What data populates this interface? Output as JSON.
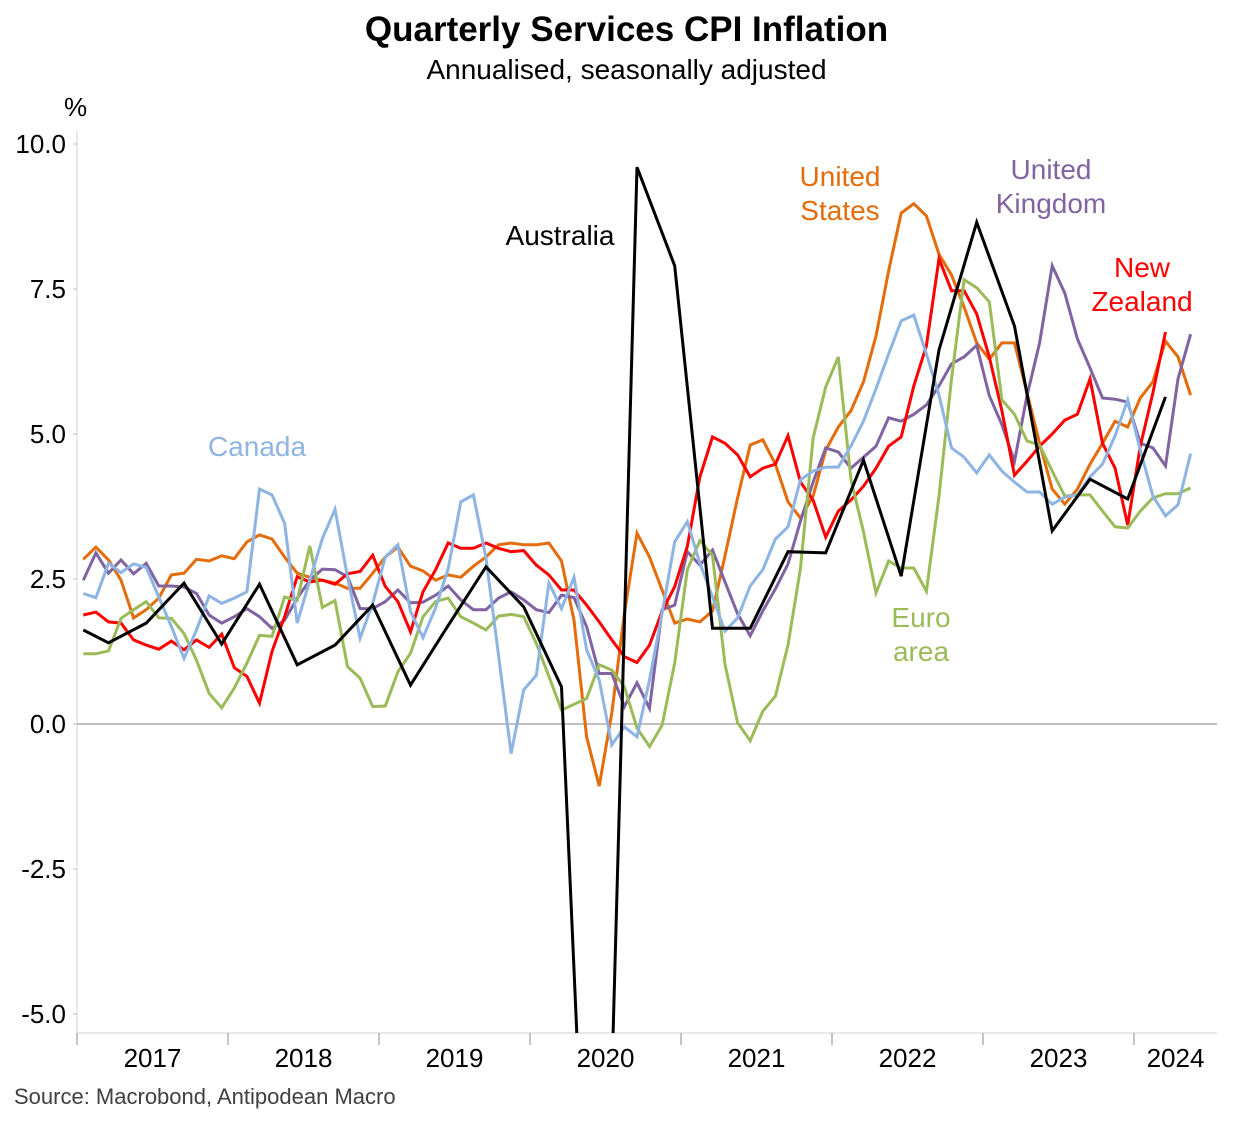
{
  "chart_data": {
    "type": "line",
    "title": "Quarterly Services CPI Inflation",
    "subtitle": "Annualised, seasonally adjusted",
    "ylabel": "%",
    "xlabel": "",
    "ylim": [
      -5.3,
      10.3
    ],
    "xlim": [
      2017.0,
      2024.55
    ],
    "yticks": [
      10.0,
      7.5,
      5.0,
      2.5,
      0.0,
      -2.5,
      -5.0
    ],
    "ytick_labels": [
      "10.0",
      "7.5",
      "5.0",
      "2.5",
      "0.0",
      "-2.5",
      "-5.0"
    ],
    "xtick_labels": [
      "2017",
      "2018",
      "2019",
      "2020",
      "2021",
      "2022",
      "2023",
      "2024"
    ],
    "grid": false,
    "source": "Source: Macrobond, Antipodean Macro",
    "monthly_start": "2017-01",
    "series": [
      {
        "name": "United States",
        "label_lines": [
          "United",
          "States"
        ],
        "color": "#E46C0A",
        "frequency": "monthly",
        "values": [
          2.84,
          3.05,
          2.83,
          2.48,
          1.83,
          1.97,
          2.17,
          2.57,
          2.6,
          2.84,
          2.81,
          2.9,
          2.85,
          3.14,
          3.26,
          3.19,
          2.88,
          2.6,
          2.53,
          2.48,
          2.43,
          2.34,
          2.34,
          2.6,
          2.88,
          3.05,
          2.72,
          2.64,
          2.48,
          2.57,
          2.53,
          2.72,
          2.88,
          3.09,
          3.12,
          3.09,
          3.09,
          3.12,
          2.81,
          1.79,
          -0.22,
          -1.07,
          0.19,
          1.91,
          3.29,
          2.88,
          2.31,
          1.74,
          1.81,
          1.76,
          1.95,
          2.9,
          3.9,
          4.81,
          4.9,
          4.48,
          3.83,
          3.55,
          3.93,
          4.72,
          5.12,
          5.4,
          5.9,
          6.69,
          7.81,
          8.81,
          8.97,
          8.76,
          8.1,
          7.74,
          7.19,
          6.57,
          6.29,
          6.57,
          6.57,
          5.71,
          4.84,
          4.05,
          3.79,
          4.05,
          4.48,
          4.84,
          5.22,
          5.12,
          5.62,
          5.9,
          6.6,
          6.33,
          5.67
        ]
      },
      {
        "name": "United Kingdom",
        "label_lines": [
          "United",
          "Kingdom"
        ],
        "color": "#8064A2",
        "frequency": "monthly",
        "values": [
          2.48,
          2.95,
          2.6,
          2.83,
          2.59,
          2.77,
          2.38,
          2.38,
          2.36,
          2.25,
          1.88,
          1.74,
          1.85,
          1.99,
          1.85,
          1.65,
          1.79,
          2.17,
          2.48,
          2.67,
          2.66,
          2.54,
          1.99,
          1.99,
          2.11,
          2.31,
          2.09,
          2.1,
          2.22,
          2.38,
          2.14,
          1.97,
          1.97,
          2.17,
          2.28,
          2.14,
          1.97,
          1.92,
          2.22,
          2.18,
          1.68,
          0.87,
          0.87,
          0.3,
          0.71,
          0.27,
          1.97,
          2.05,
          2.97,
          2.74,
          3.0,
          2.45,
          1.9,
          1.52,
          1.95,
          2.33,
          2.76,
          3.5,
          4.17,
          4.76,
          4.69,
          4.41,
          4.6,
          4.79,
          5.28,
          5.22,
          5.34,
          5.5,
          5.83,
          6.21,
          6.33,
          6.53,
          5.66,
          5.16,
          4.53,
          5.66,
          6.57,
          7.9,
          7.43,
          6.64,
          6.14,
          5.62,
          5.6,
          5.55,
          4.84,
          4.76,
          4.45,
          5.95,
          6.72
        ]
      },
      {
        "name": "New Zealand",
        "label_lines": [
          "New",
          "Zealand"
        ],
        "color": "#FF0000",
        "frequency": "monthly",
        "values": [
          1.88,
          1.93,
          1.76,
          1.74,
          1.45,
          1.36,
          1.29,
          1.43,
          1.28,
          1.45,
          1.32,
          1.55,
          0.97,
          0.82,
          0.36,
          1.25,
          1.85,
          2.54,
          2.45,
          2.48,
          2.41,
          2.59,
          2.63,
          2.91,
          2.37,
          2.11,
          1.59,
          2.28,
          2.66,
          3.12,
          3.03,
          3.03,
          3.12,
          3.03,
          2.97,
          2.99,
          2.74,
          2.57,
          2.31,
          2.31,
          2.05,
          1.76,
          1.45,
          1.16,
          1.06,
          1.36,
          1.94,
          2.37,
          3.06,
          4.26,
          4.95,
          4.84,
          4.64,
          4.26,
          4.41,
          4.48,
          4.97,
          4.17,
          3.86,
          3.22,
          3.67,
          3.86,
          4.1,
          4.41,
          4.79,
          4.95,
          5.83,
          6.52,
          8.02,
          7.47,
          7.47,
          7.07,
          6.33,
          5.4,
          4.29,
          4.53,
          4.79,
          5.0,
          5.24,
          5.34,
          5.95,
          4.84,
          4.41,
          3.43,
          4.79,
          5.71,
          6.76
        ]
      },
      {
        "name": "Euro area",
        "label_lines": [
          "Euro",
          "area"
        ],
        "color": "#9BBB59",
        "frequency": "monthly",
        "values": [
          1.21,
          1.21,
          1.26,
          1.82,
          1.97,
          2.11,
          1.83,
          1.82,
          1.56,
          1.1,
          0.53,
          0.28,
          0.62,
          1.05,
          1.53,
          1.51,
          2.19,
          2.13,
          3.07,
          2.01,
          2.13,
          0.99,
          0.79,
          0.3,
          0.31,
          0.9,
          1.22,
          1.85,
          2.11,
          2.17,
          1.85,
          1.74,
          1.62,
          1.86,
          1.89,
          1.85,
          1.39,
          0.82,
          0.24,
          0.34,
          0.44,
          1.02,
          0.93,
          0.64,
          -0.07,
          -0.39,
          -0.02,
          1.05,
          2.66,
          3.16,
          2.91,
          1.03,
          0.02,
          -0.29,
          0.22,
          0.48,
          1.36,
          2.69,
          4.93,
          5.81,
          6.33,
          4.22,
          3.31,
          2.26,
          2.81,
          2.69,
          2.69,
          2.29,
          3.93,
          5.95,
          7.66,
          7.52,
          7.28,
          5.59,
          5.34,
          4.88,
          4.81,
          4.36,
          3.93,
          3.95,
          3.95,
          3.67,
          3.4,
          3.38,
          3.67,
          3.9,
          3.97,
          3.97,
          4.07
        ]
      },
      {
        "name": "Canada",
        "label_lines": [
          "Canada"
        ],
        "color": "#8DB4E2",
        "frequency": "monthly",
        "values": [
          2.25,
          2.18,
          2.77,
          2.61,
          2.76,
          2.7,
          2.19,
          1.68,
          1.13,
          1.62,
          2.21,
          2.08,
          2.17,
          2.28,
          4.05,
          3.95,
          3.46,
          1.74,
          2.48,
          3.2,
          3.7,
          2.54,
          1.48,
          2.08,
          2.88,
          3.09,
          1.94,
          1.49,
          2.0,
          2.68,
          3.83,
          3.95,
          2.86,
          1.19,
          -0.51,
          0.59,
          0.84,
          2.43,
          1.99,
          2.53,
          1.28,
          0.76,
          -0.36,
          -0.05,
          -0.22,
          0.76,
          1.91,
          3.14,
          3.49,
          2.77,
          2.19,
          1.6,
          1.83,
          2.38,
          2.66,
          3.19,
          3.4,
          4.21,
          4.36,
          4.43,
          4.43,
          4.79,
          5.22,
          5.78,
          6.38,
          6.95,
          7.05,
          6.38,
          5.67,
          4.76,
          4.6,
          4.33,
          4.64,
          4.36,
          4.17,
          4.0,
          4.0,
          3.79,
          3.91,
          3.95,
          4.26,
          4.48,
          4.97,
          5.59,
          4.72,
          3.93,
          3.59,
          3.78,
          4.66
        ]
      },
      {
        "name": "Australia",
        "label_lines": [
          "Australia"
        ],
        "color": "#000000",
        "frequency": "quarterly",
        "dates": [
          "2017-01",
          "2017-03",
          "2017-06",
          "2017-09",
          "2017-12",
          "2018-03",
          "2018-06",
          "2018-09",
          "2018-12",
          "2019-03",
          "2019-06",
          "2019-09",
          "2019-12",
          "2020-03",
          "2020-06",
          "2020-09",
          "2020-12",
          "2021-03",
          "2021-06",
          "2021-09",
          "2021-12",
          "2022-03",
          "2022-06",
          "2022-09",
          "2022-12",
          "2023-03",
          "2023-06",
          "2023-09",
          "2023-12",
          "2024-03"
        ],
        "values": [
          1.62,
          1.4,
          1.74,
          2.43,
          1.38,
          2.41,
          1.02,
          1.36,
          2.05,
          0.67,
          1.7,
          2.71,
          2.02,
          0.64,
          -14.0,
          9.6,
          7.9,
          1.65,
          1.65,
          2.97,
          2.95,
          4.55,
          2.55,
          6.45,
          8.65,
          6.86,
          3.33,
          4.22,
          3.88,
          5.64
        ]
      }
    ]
  }
}
